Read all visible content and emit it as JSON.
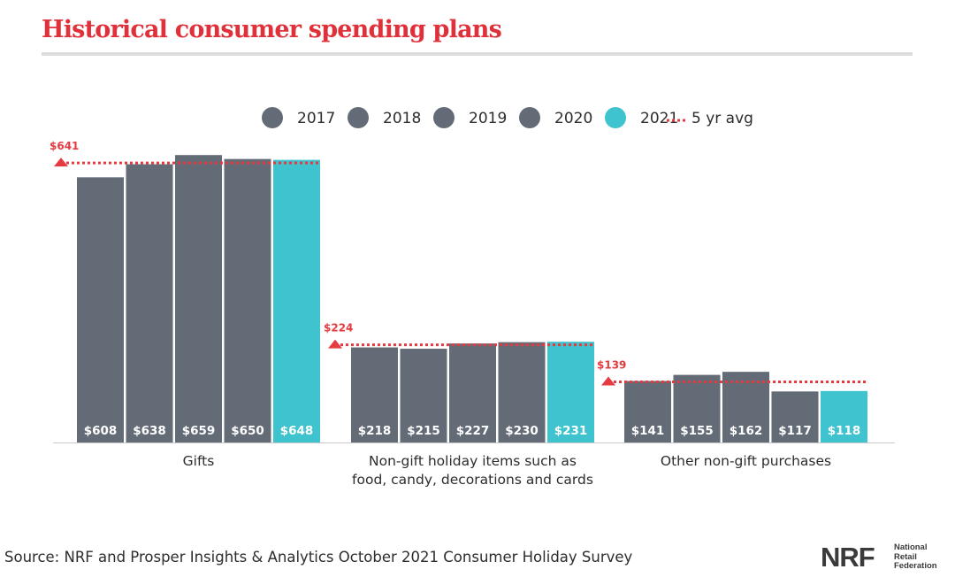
{
  "title": "Historical consumer spending plans",
  "source": "Source: NRF and Prosper Insights & Analytics October 2021 Consumer Holiday Survey",
  "logo": {
    "mark": "NRF",
    "lines": [
      "National",
      "Retail",
      "Federation"
    ]
  },
  "colors": {
    "past_year": "#636b76",
    "current_year": "#3ec3cf",
    "average": "#e53a3f",
    "title": "#e0303a"
  },
  "chart_data": {
    "type": "bar",
    "title": "Historical consumer spending plans",
    "xlabel": "",
    "ylabel": "",
    "ylim": [
      0,
      700
    ],
    "grid": false,
    "legend_position": "top",
    "categories": [
      [
        "Gifts"
      ],
      [
        "Non-gift holiday items such as",
        "food, candy, decorations and cards"
      ],
      [
        "Other non-gift purchases"
      ]
    ],
    "series": [
      {
        "name": "2017",
        "values": [
          608,
          218,
          141
        ],
        "labels": [
          "$608",
          "$218",
          "$141"
        ]
      },
      {
        "name": "2018",
        "values": [
          638,
          215,
          155
        ],
        "labels": [
          "$638",
          "$215",
          "$155"
        ]
      },
      {
        "name": "2019",
        "values": [
          659,
          227,
          162
        ],
        "labels": [
          "$659",
          "$227",
          "$162"
        ]
      },
      {
        "name": "2020",
        "values": [
          650,
          230,
          117
        ],
        "labels": [
          "$650",
          "$230",
          "$117"
        ]
      },
      {
        "name": "2021",
        "values": [
          648,
          231,
          118
        ],
        "labels": [
          "$648",
          "$231",
          "$118"
        ]
      }
    ],
    "average": {
      "name": "5 yr avg",
      "values": [
        641,
        224,
        139
      ],
      "labels": [
        "$641",
        "$224",
        "$139"
      ]
    }
  }
}
